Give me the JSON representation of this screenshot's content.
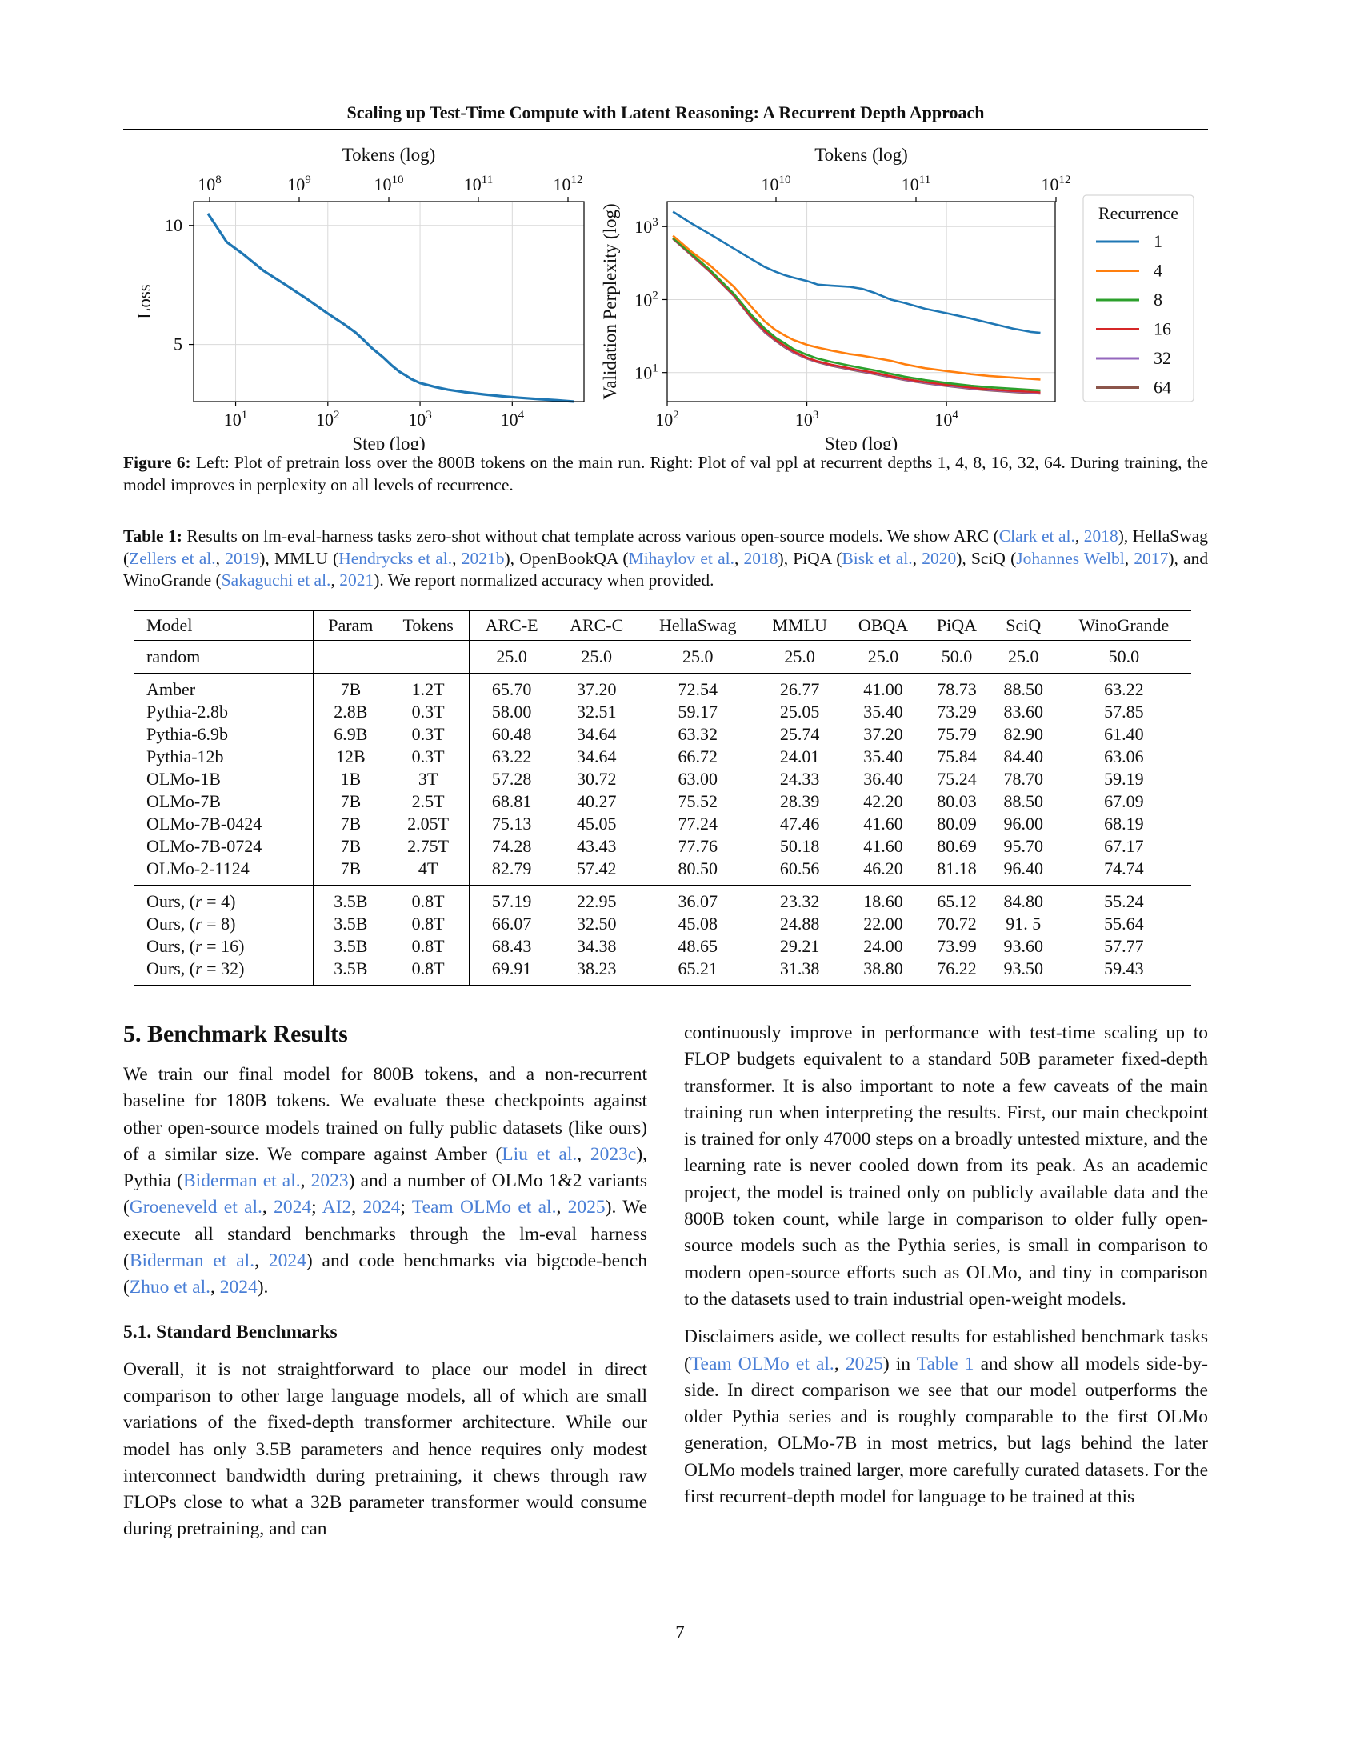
{
  "running_header": "Scaling up Test-Time Compute with Latent Reasoning: A Recurrent Depth Approach",
  "chart_data": [
    {
      "type": "line",
      "xlabel": "Step (log)",
      "x2label": "Tokens (log)",
      "ylabel": "Loss",
      "x_scale": "log",
      "xlim": [
        3.5,
        60000
      ],
      "ylim": [
        2.6,
        11
      ],
      "y_ticks": [
        5,
        10
      ],
      "x_ticks": [
        "10^1",
        "10^2",
        "10^3",
        "10^4"
      ],
      "x2_ticks": [
        "10^8",
        "10^9",
        "10^10",
        "10^11",
        "10^12"
      ],
      "grid": true,
      "series": [
        {
          "color": "#1f77b4",
          "x": [
            5,
            8,
            12,
            20,
            35,
            60,
            100,
            150,
            200,
            250,
            300,
            400,
            500,
            600,
            700,
            800,
            1000,
            1500,
            2000,
            3000,
            5000,
            8000,
            12000,
            20000,
            30000,
            40000,
            47000
          ],
          "y": [
            10.5,
            9.3,
            8.8,
            8.1,
            7.5,
            6.9,
            6.3,
            5.85,
            5.5,
            5.15,
            4.85,
            4.45,
            4.1,
            3.85,
            3.7,
            3.55,
            3.38,
            3.2,
            3.1,
            3.0,
            2.9,
            2.82,
            2.76,
            2.7,
            2.66,
            2.62,
            2.6
          ]
        }
      ]
    },
    {
      "type": "line",
      "xlabel": "Step (log)",
      "x2label": "Tokens (log)",
      "ylabel": "Validation Perplexity (log)",
      "x_scale": "log",
      "y_scale": "log",
      "xlim": [
        100,
        60000
      ],
      "ylim": [
        4,
        2200
      ],
      "x_ticks": [
        "10^2",
        "10^3",
        "10^4"
      ],
      "x2_ticks": [
        "10^10",
        "10^11",
        "10^12"
      ],
      "y_ticks": [
        "10^1",
        "10^2",
        "10^3"
      ],
      "grid": true,
      "legend_title": "Recurrence",
      "legend_position": "outside-right",
      "series": [
        {
          "name": "1",
          "color": "#1f77b4",
          "x": [
            110,
            150,
            200,
            300,
            400,
            500,
            600,
            700,
            800,
            1000,
            1200,
            1500,
            2000,
            2500,
            3000,
            4000,
            5000,
            7000,
            10000,
            15000,
            20000,
            30000,
            40000,
            47000
          ],
          "y": [
            1600,
            1100,
            800,
            500,
            360,
            280,
            240,
            215,
            200,
            180,
            160,
            155,
            150,
            140,
            125,
            100,
            90,
            75,
            65,
            55,
            48,
            40,
            36,
            35
          ]
        },
        {
          "name": "4",
          "color": "#ff7f0e",
          "x": [
            110,
            150,
            200,
            300,
            400,
            500,
            600,
            700,
            800,
            1000,
            1200,
            1500,
            2000,
            2500,
            3000,
            4000,
            5000,
            7000,
            10000,
            15000,
            20000,
            30000,
            40000,
            47000
          ],
          "y": [
            750,
            450,
            300,
            150,
            80,
            50,
            38,
            32,
            28,
            24,
            22,
            20,
            18,
            17,
            16,
            14.5,
            13,
            11.5,
            10.5,
            9.5,
            9,
            8.5,
            8.2,
            8
          ]
        },
        {
          "name": "8",
          "color": "#2ca02c",
          "x": [
            110,
            150,
            200,
            300,
            400,
            500,
            600,
            700,
            800,
            1000,
            1200,
            1500,
            2000,
            2500,
            3000,
            4000,
            5000,
            7000,
            10000,
            15000,
            20000,
            30000,
            40000,
            47000
          ],
          "y": [
            700,
            420,
            260,
            120,
            62,
            40,
            30,
            25,
            21,
            17.5,
            15.5,
            14,
            12.5,
            11.5,
            10.8,
            9.6,
            8.8,
            7.9,
            7.2,
            6.6,
            6.3,
            6.0,
            5.8,
            5.7
          ]
        },
        {
          "name": "16",
          "color": "#d62728",
          "x": [
            110,
            150,
            200,
            300,
            400,
            500,
            600,
            700,
            800,
            1000,
            1200,
            1500,
            2000,
            2500,
            3000,
            4000,
            5000,
            7000,
            10000,
            15000,
            20000,
            30000,
            40000,
            47000
          ],
          "y": [
            690,
            410,
            250,
            115,
            58,
            37,
            28,
            23,
            19.5,
            16,
            14.2,
            12.8,
            11.5,
            10.6,
            10,
            8.9,
            8.2,
            7.4,
            6.8,
            6.2,
            5.9,
            5.6,
            5.45,
            5.35
          ]
        },
        {
          "name": "32",
          "color": "#9467bd",
          "x": [
            110,
            150,
            200,
            300,
            400,
            500,
            600,
            700,
            800,
            1000,
            1200,
            1500,
            2000,
            2500,
            3000,
            4000,
            5000,
            7000,
            10000,
            15000,
            20000,
            30000,
            40000,
            47000
          ],
          "y": [
            685,
            405,
            248,
            113,
            57,
            36,
            27.5,
            22.5,
            19,
            15.7,
            14,
            12.6,
            11.3,
            10.4,
            9.8,
            8.7,
            8.0,
            7.25,
            6.65,
            6.1,
            5.8,
            5.5,
            5.35,
            5.25
          ]
        },
        {
          "name": "64",
          "color": "#8c564b",
          "x": [
            110,
            150,
            200,
            300,
            400,
            500,
            600,
            700,
            800,
            1000,
            1200,
            1500,
            2000,
            2500,
            3000,
            4000,
            5000,
            7000,
            10000,
            15000,
            20000,
            30000,
            40000,
            47000
          ],
          "y": [
            680,
            400,
            245,
            112,
            56,
            35.5,
            27,
            22,
            18.8,
            15.5,
            13.8,
            12.4,
            11.1,
            10.2,
            9.6,
            8.6,
            7.9,
            7.15,
            6.55,
            6.0,
            5.7,
            5.4,
            5.25,
            5.15
          ]
        }
      ]
    }
  ],
  "figure_caption": {
    "label": "Figure 6:",
    "text": " Left: Plot of pretrain loss over the 800B tokens on the main run. Right: Plot of val ppl at recurrent depths 1, 4, 8, 16, 32, 64. During training, the model improves in perplexity on all levels of recurrence."
  },
  "table_caption": {
    "label": "Table 1:",
    "t1": " Results on lm-eval-harness tasks zero-shot without chat template across various open-source models. We show ARC (",
    "c1a": "Clark et al.",
    "s1": ", ",
    "c1b": "2018",
    "t2": "), HellaSwag (",
    "c2a": "Zellers et al.",
    "c2b": "2019",
    "t3": "), MMLU (",
    "c3a": "Hendrycks et al.",
    "c3b": "2021b",
    "t4": "), OpenBookQA (",
    "c4a": "Mihaylov et al.",
    "c4b": "2018",
    "t5": "), PiQA (",
    "c5a": "Bisk et al.",
    "c5b": "2020",
    "t6": "), SciQ (",
    "c6a": "Johannes Welbl",
    "c6b": "2017",
    "t7": "), and WinoGrande (",
    "c7a": "Sakaguchi et al.",
    "c7b": "2021",
    "t8": "). We report normalized accuracy when provided."
  },
  "table": {
    "headers": [
      "Model",
      "Param",
      "Tokens",
      "ARC-E",
      "ARC-C",
      "HellaSwag",
      "MMLU",
      "OBQA",
      "PiQA",
      "SciQ",
      "WinoGrande"
    ],
    "random": [
      "random",
      "",
      "",
      "25.0",
      "25.0",
      "25.0",
      "25.0",
      "25.0",
      "50.0",
      "25.0",
      "50.0"
    ],
    "others": [
      [
        "Amber",
        "7B",
        "1.2T",
        "65.70",
        "37.20",
        "72.54",
        "26.77",
        "41.00",
        "78.73",
        "88.50",
        "63.22"
      ],
      [
        "Pythia-2.8b",
        "2.8B",
        "0.3T",
        "58.00",
        "32.51",
        "59.17",
        "25.05",
        "35.40",
        "73.29",
        "83.60",
        "57.85"
      ],
      [
        "Pythia-6.9b",
        "6.9B",
        "0.3T",
        "60.48",
        "34.64",
        "63.32",
        "25.74",
        "37.20",
        "75.79",
        "82.90",
        "61.40"
      ],
      [
        "Pythia-12b",
        "12B",
        "0.3T",
        "63.22",
        "34.64",
        "66.72",
        "24.01",
        "35.40",
        "75.84",
        "84.40",
        "63.06"
      ],
      [
        "OLMo-1B",
        "1B",
        "3T",
        "57.28",
        "30.72",
        "63.00",
        "24.33",
        "36.40",
        "75.24",
        "78.70",
        "59.19"
      ],
      [
        "OLMo-7B",
        "7B",
        "2.5T",
        "68.81",
        "40.27",
        "75.52",
        "28.39",
        "42.20",
        "80.03",
        "88.50",
        "67.09"
      ],
      [
        "OLMo-7B-0424",
        "7B",
        "2.05T",
        "75.13",
        "45.05",
        "77.24",
        "47.46",
        "41.60",
        "80.09",
        "96.00",
        "68.19"
      ],
      [
        "OLMo-7B-0724",
        "7B",
        "2.75T",
        "74.28",
        "43.43",
        "77.76",
        "50.18",
        "41.60",
        "80.69",
        "95.70",
        "67.17"
      ],
      [
        "OLMo-2-1124",
        "7B",
        "4T",
        "82.79",
        "57.42",
        "80.50",
        "60.56",
        "46.20",
        "81.18",
        "96.40",
        "74.74"
      ]
    ],
    "ours_prefix": "Ours, (",
    "ours_var": "r",
    "ours_suffix": ")",
    "ours": [
      {
        "r": " = 4",
        "vals": [
          "3.5B",
          "0.8T",
          "57.19",
          "22.95",
          "36.07",
          "23.32",
          "18.60",
          "65.12",
          "84.80",
          "55.24"
        ]
      },
      {
        "r": " = 8",
        "vals": [
          "3.5B",
          "0.8T",
          "66.07",
          "32.50",
          "45.08",
          "24.88",
          "22.00",
          "70.72",
          "91. 5",
          "55.64"
        ]
      },
      {
        "r": " = 16",
        "vals": [
          "3.5B",
          "0.8T",
          "68.43",
          "34.38",
          "48.65",
          "29.21",
          "24.00",
          "73.99",
          "93.60",
          "57.77"
        ]
      },
      {
        "r": " = 32",
        "vals": [
          "3.5B",
          "0.8T",
          "69.91",
          "38.23",
          "65.21",
          "31.38",
          "38.80",
          "76.22",
          "93.50",
          "59.43"
        ]
      }
    ]
  },
  "section": {
    "title": "5. Benchmark Results",
    "p1": {
      "t1": "We train our final model for 800B tokens, and a non-recurrent baseline for 180B tokens. We evaluate these checkpoints against other open-source models trained on fully public datasets (like ours) of a similar size. We compare against Amber (",
      "c1a": "Liu et al.",
      "c1b": "2023c",
      "t2": "), Pythia (",
      "c2a": "Biderman et al.",
      "c2b": "2023",
      "t3": ") and a number of OLMo 1&2 variants (",
      "c3a": "Groeneveld et al.",
      "c3b": "2024",
      "c3c": "AI2",
      "c3d": "2024",
      "c3e": "Team OLMo et al.",
      "c3f": "2025",
      "t4": "). We execute all standard benchmarks through the lm-eval harness (",
      "c4a": "Biderman et al.",
      "c4b": "2024",
      "t5": ") and code benchmarks via bigcode-bench (",
      "c5a": "Zhuo et al.",
      "c5b": "2024",
      "t6": ")."
    },
    "subsection_title": "5.1. Standard Benchmarks",
    "p2": "Overall, it is not straightforward to place our model in direct comparison to other large language models, all of which are small variations of the fixed-depth transformer architecture. While our model has only 3.5B parameters and hence requires only modest interconnect bandwidth during pretraining, it chews through raw FLOPs close to what a 32B parameter transformer would consume during pretraining, and can",
    "p3": "continuously improve in performance with test-time scaling up to FLOP budgets equivalent to a standard 50B parameter fixed-depth transformer. It is also important to note a few caveats of the main training run when interpreting the results. First, our main checkpoint is trained for only 47000 steps on a broadly untested mixture, and the learning rate is never cooled down from its peak. As an academic project, the model is trained only on publicly available data and the 800B token count, while large in comparison to older fully open-source models such as the Pythia series, is small in comparison to modern open-source efforts such as OLMo, and tiny in comparison to the datasets used to train industrial open-weight models.",
    "p4": {
      "t1": "Disclaimers aside, we collect results for established benchmark tasks (",
      "c1a": "Team OLMo et al.",
      "c1b": "2025",
      "t2": ") in ",
      "ref": "Table 1",
      "t3": " and show all models side-by-side. In direct comparison we see that our model outperforms the older Pythia series and is roughly comparable to the first OLMo generation, OLMo-7B in most metrics, but lags behind the later OLMo models trained larger, more carefully curated datasets. For the first recurrent-depth model for language to be trained at this"
    }
  },
  "page_number": "7"
}
